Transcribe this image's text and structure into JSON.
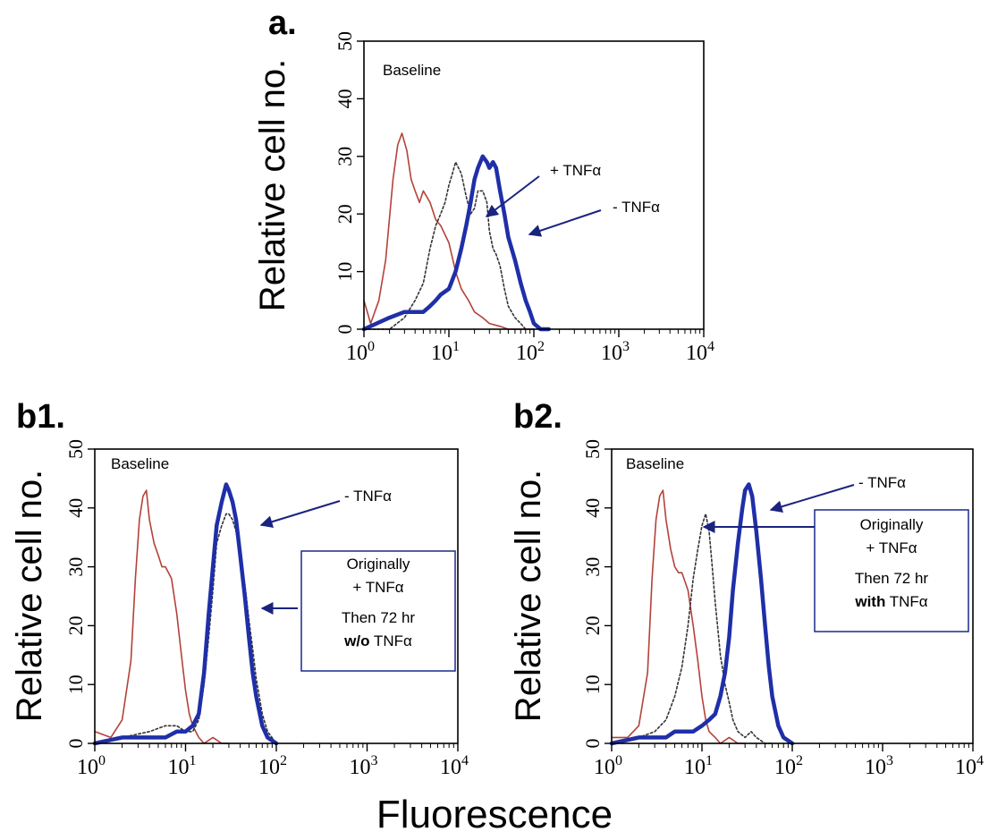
{
  "figure": {
    "shared_xlabel": "Fluorescence"
  },
  "colors": {
    "baseline": "#b3423a",
    "tnf_minus": "#1f2fa8",
    "tnf_plus": "#333333",
    "arrow": "#1a237e",
    "box": "#1a2a8a"
  },
  "chart_data": [
    {
      "panel": "a.",
      "type": "line",
      "ylabel": "Relative cell no.",
      "xscale": "log",
      "xlim": [
        1,
        10000
      ],
      "ylim": [
        0,
        50
      ],
      "yticks": [
        0,
        10,
        20,
        30,
        40,
        50
      ],
      "xticks": [
        1,
        10,
        100,
        1000,
        10000
      ],
      "xtick_labels": [
        {
          "base": "10",
          "exp": "0"
        },
        {
          "base": "10",
          "exp": "1"
        },
        {
          "base": "10",
          "exp": "2"
        },
        {
          "base": "10",
          "exp": "3"
        },
        {
          "base": "10",
          "exp": "4"
        }
      ],
      "annotations": [
        "Baseline",
        "+ TNFα",
        "- TNFα"
      ],
      "series": [
        {
          "name": "Baseline",
          "style": "baseline",
          "x": [
            1,
            1.2,
            1.5,
            1.8,
            2.2,
            2.5,
            2.8,
            3.2,
            3.6,
            4,
            4.5,
            5,
            6,
            7,
            8,
            10,
            12,
            14,
            17,
            20,
            25,
            30,
            40,
            50,
            60,
            80,
            100
          ],
          "y": [
            5,
            1,
            5,
            12,
            26,
            32,
            34,
            31,
            26,
            24,
            22,
            24,
            22,
            19,
            18,
            15,
            10,
            7,
            5,
            3,
            2,
            1,
            0.5,
            0,
            0,
            0,
            0
          ]
        },
        {
          "name": "+ TNFα",
          "style": "tnf_plus",
          "x": [
            1,
            2,
            3,
            4,
            5,
            6,
            7,
            8,
            9,
            10,
            11,
            12,
            14,
            16,
            18,
            20,
            22,
            25,
            28,
            30,
            33,
            36,
            40,
            45,
            50,
            60,
            70,
            80,
            100
          ],
          "y": [
            0,
            0,
            2,
            5,
            8,
            14,
            18,
            20,
            22,
            25,
            27,
            29,
            27,
            23,
            20,
            21,
            24,
            24,
            22,
            17,
            14,
            13,
            11,
            7,
            4,
            2,
            1,
            0,
            0
          ]
        },
        {
          "name": "- TNFα",
          "style": "tnf_minus",
          "x": [
            1,
            2,
            3,
            4,
            5,
            6,
            7,
            8,
            10,
            12,
            14,
            16,
            18,
            20,
            22,
            25,
            28,
            30,
            33,
            36,
            40,
            45,
            50,
            60,
            70,
            80,
            90,
            100,
            120,
            150
          ],
          "y": [
            0,
            2,
            3,
            3,
            3,
            4,
            5,
            6,
            7,
            10,
            14,
            18,
            22,
            26,
            28,
            30,
            29,
            28,
            29,
            28,
            24,
            20,
            16,
            12,
            8,
            5,
            3,
            1,
            0,
            0
          ]
        }
      ]
    },
    {
      "panel": "b1.",
      "type": "line",
      "ylabel": "Relative cell no.",
      "xscale": "log",
      "xlim": [
        1,
        10000
      ],
      "ylim": [
        0,
        50
      ],
      "yticks": [
        0,
        10,
        20,
        30,
        40,
        50
      ],
      "xticks": [
        1,
        10,
        100,
        1000,
        10000
      ],
      "xtick_labels": [
        {
          "base": "10",
          "exp": "0"
        },
        {
          "base": "10",
          "exp": "1"
        },
        {
          "base": "10",
          "exp": "2"
        },
        {
          "base": "10",
          "exp": "3"
        },
        {
          "base": "10",
          "exp": "4"
        }
      ],
      "annotations": [
        "Baseline",
        "- TNFα"
      ],
      "box_lines": [
        [
          {
            "t": "Originally",
            "b": false
          }
        ],
        [
          {
            "t": "+ TNFα",
            "b": false
          }
        ],
        [
          {
            "t": "Then 72 hr",
            "b": false
          }
        ],
        [
          {
            "t": "w/o",
            "b": true
          },
          {
            "t": " TNFα",
            "b": false
          }
        ]
      ],
      "series": [
        {
          "name": "Baseline",
          "style": "baseline",
          "x": [
            1,
            1.5,
            2,
            2.5,
            2.8,
            3.1,
            3.4,
            3.7,
            4,
            4.5,
            5,
            5.5,
            6,
            7,
            8,
            9,
            10,
            11,
            12,
            14,
            16,
            20,
            25,
            30
          ],
          "y": [
            2,
            1,
            4,
            14,
            28,
            38,
            42,
            43,
            38,
            34,
            32,
            30,
            30,
            28,
            22,
            15,
            9,
            5,
            3,
            1,
            0,
            1,
            0,
            0
          ]
        },
        {
          "name": "Originally + TNFα, then 72 hr w/o TNFα",
          "style": "tnf_plus",
          "x": [
            1,
            2,
            4,
            6,
            8,
            10,
            12,
            14,
            16,
            18,
            20,
            22,
            25,
            28,
            30,
            33,
            36,
            40,
            45,
            50,
            55,
            60,
            70,
            80,
            100
          ],
          "y": [
            0,
            1,
            2,
            3,
            3,
            2,
            2,
            4,
            10,
            18,
            26,
            34,
            37,
            39,
            39,
            38,
            36,
            32,
            27,
            21,
            16,
            11,
            5,
            2,
            0
          ]
        },
        {
          "name": "- TNFα",
          "style": "tnf_minus",
          "x": [
            1,
            2,
            4,
            6,
            8,
            10,
            12,
            14,
            16,
            18,
            20,
            22,
            25,
            28,
            30,
            33,
            36,
            40,
            45,
            50,
            55,
            60,
            70,
            80,
            100
          ],
          "y": [
            0,
            1,
            1,
            1,
            2,
            2,
            3,
            5,
            12,
            22,
            30,
            37,
            41,
            44,
            43,
            41,
            38,
            32,
            25,
            18,
            12,
            8,
            3,
            1,
            0
          ]
        }
      ]
    },
    {
      "panel": "b2.",
      "type": "line",
      "ylabel": "Relative cell no.",
      "xscale": "log",
      "xlim": [
        1,
        10000
      ],
      "ylim": [
        0,
        50
      ],
      "yticks": [
        0,
        10,
        20,
        30,
        40,
        50
      ],
      "xticks": [
        1,
        10,
        100,
        1000,
        10000
      ],
      "xtick_labels": [
        {
          "base": "10",
          "exp": "0"
        },
        {
          "base": "10",
          "exp": "1"
        },
        {
          "base": "10",
          "exp": "2"
        },
        {
          "base": "10",
          "exp": "3"
        },
        {
          "base": "10",
          "exp": "4"
        }
      ],
      "annotations": [
        "Baseline",
        "- TNFα"
      ],
      "box_lines": [
        [
          {
            "t": "Originally",
            "b": false
          }
        ],
        [
          {
            "t": "+ TNFα",
            "b": false
          }
        ],
        [
          {
            "t": "Then 72 hr",
            "b": false
          }
        ],
        [
          {
            "t": "with",
            "b": true
          },
          {
            "t": " TNFα",
            "b": false
          }
        ]
      ],
      "series": [
        {
          "name": "Baseline",
          "style": "baseline",
          "x": [
            1,
            1.5,
            2,
            2.5,
            2.8,
            3.1,
            3.4,
            3.7,
            4,
            4.5,
            5,
            5.5,
            6,
            7,
            8,
            9,
            10,
            11,
            12,
            14,
            16,
            20,
            25,
            30
          ],
          "y": [
            1,
            1,
            3,
            12,
            28,
            38,
            42,
            43,
            38,
            33,
            30,
            29,
            29,
            26,
            20,
            14,
            8,
            4,
            2,
            1,
            0,
            1,
            0,
            0
          ]
        },
        {
          "name": "Originally + TNFα, then 72 hr with TNFα",
          "style": "tnf_plus",
          "x": [
            1,
            2,
            3,
            4,
            5,
            6,
            7,
            8,
            9,
            10,
            11,
            12,
            13,
            14,
            16,
            18,
            20,
            22,
            25,
            30,
            35,
            40,
            50,
            60
          ],
          "y": [
            0,
            1,
            2,
            4,
            8,
            13,
            20,
            28,
            33,
            37,
            39,
            36,
            30,
            24,
            15,
            10,
            7,
            4,
            2,
            1,
            2,
            1,
            0,
            0
          ]
        },
        {
          "name": "- TNFα",
          "style": "tnf_minus",
          "x": [
            1,
            2,
            3,
            4,
            5,
            6,
            8,
            10,
            12,
            14,
            16,
            18,
            20,
            22,
            25,
            28,
            30,
            33,
            36,
            40,
            45,
            50,
            55,
            60,
            70,
            80,
            100
          ],
          "y": [
            0,
            1,
            1,
            1,
            2,
            2,
            2,
            3,
            4,
            5,
            8,
            12,
            18,
            26,
            34,
            40,
            43,
            44,
            42,
            36,
            28,
            20,
            13,
            8,
            3,
            1,
            0
          ]
        }
      ]
    }
  ]
}
